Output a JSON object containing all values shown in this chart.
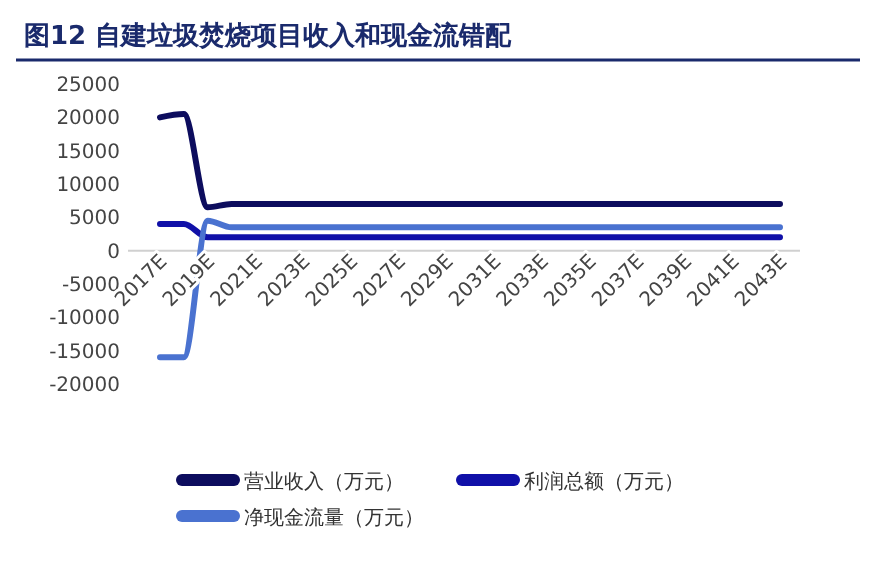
{
  "chart_data": {
    "type": "line",
    "title": "图12 自建垃圾焚烧项目收入和现金流错配",
    "categories": [
      "2017E",
      null,
      "2019E",
      null,
      "2021E",
      null,
      "2023E",
      null,
      "2025E",
      null,
      "2027E",
      null,
      "2029E",
      null,
      "2031E",
      null,
      "2033E",
      null,
      "2035E",
      null,
      "2037E",
      null,
      "2039E",
      null,
      "2041E",
      null,
      "2043E"
    ],
    "series": [
      {
        "name": "营业收入（万元）",
        "color": "#0d0d5e",
        "values": [
          20000,
          20500,
          6500,
          7000,
          7000,
          7000,
          7000,
          7000,
          7000,
          7000,
          7000,
          7000,
          7000,
          7000,
          7000,
          7000,
          7000,
          7000,
          7000,
          7000,
          7000,
          7000,
          7000,
          7000,
          7000,
          7000,
          7000
        ]
      },
      {
        "name": "利润总额（万元）",
        "color": "#1010a8",
        "values": [
          4000,
          4000,
          2000,
          2000,
          2000,
          2000,
          2000,
          2000,
          2000,
          2000,
          2000,
          2000,
          2000,
          2000,
          2000,
          2000,
          2000,
          2000,
          2000,
          2000,
          2000,
          2000,
          2000,
          2000,
          2000,
          2000,
          2000
        ]
      },
      {
        "name": "净现金流量（万元）",
        "color": "#4a72d0",
        "values": [
          -16000,
          -16000,
          4500,
          3500,
          3500,
          3500,
          3500,
          3500,
          3500,
          3500,
          3500,
          3500,
          3500,
          3500,
          3500,
          3500,
          3500,
          3500,
          3500,
          3500,
          3500,
          3500,
          3500,
          3500,
          3500,
          3500,
          3500
        ]
      }
    ],
    "ylim": [
      -20000,
      25000
    ],
    "yticks": [
      -20000,
      -15000,
      -10000,
      -5000,
      0,
      5000,
      10000,
      15000,
      20000,
      25000
    ],
    "legend": "bottom",
    "grid": false
  }
}
